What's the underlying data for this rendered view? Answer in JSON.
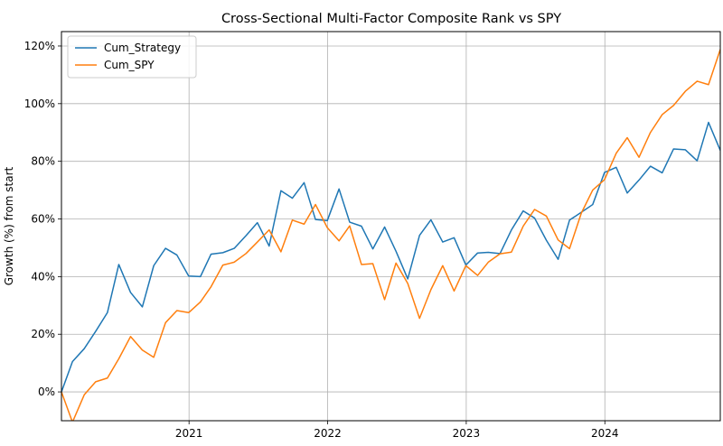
{
  "chart_data": {
    "type": "line",
    "title": "Cross-Sectional Multi-Factor Composite Rank vs SPY",
    "xlabel": "",
    "ylabel": "Growth (%) from start",
    "x_range": [
      "2020-01-31",
      "2024-10-31"
    ],
    "ylim": [
      -10,
      125
    ],
    "grid": true,
    "legend_position": "top-left",
    "x_ticks": [
      {
        "date": "2021-01-01",
        "label": "2021"
      },
      {
        "date": "2022-01-01",
        "label": "2022"
      },
      {
        "date": "2023-01-01",
        "label": "2023"
      },
      {
        "date": "2024-01-01",
        "label": "2024"
      }
    ],
    "y_ticks": [
      {
        "value": 0,
        "label": "0%"
      },
      {
        "value": 20,
        "label": "20%"
      },
      {
        "value": 40,
        "label": "40%"
      },
      {
        "value": 60,
        "label": "60%"
      },
      {
        "value": 80,
        "label": "80%"
      },
      {
        "value": 100,
        "label": "100%"
      },
      {
        "value": 120,
        "label": "120%"
      }
    ],
    "x": [
      "2020-01-31",
      "2020-02-29",
      "2020-03-31",
      "2020-04-30",
      "2020-05-31",
      "2020-06-30",
      "2020-07-31",
      "2020-08-31",
      "2020-09-30",
      "2020-10-31",
      "2020-11-30",
      "2020-12-31",
      "2021-01-31",
      "2021-02-28",
      "2021-03-31",
      "2021-04-30",
      "2021-05-31",
      "2021-06-30",
      "2021-07-31",
      "2021-08-31",
      "2021-09-30",
      "2021-10-31",
      "2021-11-30",
      "2021-12-31",
      "2022-01-31",
      "2022-02-28",
      "2022-03-31",
      "2022-04-30",
      "2022-05-31",
      "2022-06-30",
      "2022-07-31",
      "2022-08-31",
      "2022-09-30",
      "2022-10-31",
      "2022-11-30",
      "2022-12-31",
      "2023-01-31",
      "2023-02-28",
      "2023-03-31",
      "2023-04-30",
      "2023-05-31",
      "2023-06-30",
      "2023-07-31",
      "2023-08-31",
      "2023-09-30",
      "2023-10-31",
      "2023-11-30",
      "2023-12-31",
      "2024-01-31",
      "2024-02-29",
      "2024-03-31",
      "2024-04-30",
      "2024-05-31",
      "2024-06-30",
      "2024-07-31",
      "2024-08-31",
      "2024-09-30",
      "2024-10-31"
    ],
    "series": [
      {
        "name": "Cum_Strategy",
        "color": "#1f77b4",
        "values": [
          0,
          10.5,
          15,
          21,
          27.5,
          44.2,
          34.5,
          29.5,
          43.8,
          49.8,
          47.5,
          40.2,
          40,
          47.8,
          48.3,
          49.8,
          54.2,
          58.7,
          50.6,
          69.8,
          67.2,
          72.6,
          59.8,
          59.4,
          70.4,
          58.9,
          57.5,
          49.6,
          57.2,
          48.8,
          39.2,
          54.3,
          59.7,
          52,
          53.5,
          44,
          48.2,
          48.4,
          48,
          56.2,
          62.8,
          60.3,
          52.6,
          46,
          59.6,
          62.3,
          65,
          76.1,
          77.9,
          69,
          73.5,
          78.3,
          76,
          84.3,
          84,
          80.2,
          93.5,
          83.8
        ]
      },
      {
        "name": "Cum_SPY",
        "color": "#ff7f0e",
        "values": [
          0,
          -10.5,
          -1,
          3.5,
          4.8,
          11.5,
          19.2,
          14.5,
          12,
          24,
          28.2,
          27.5,
          31.2,
          36.5,
          44,
          45,
          48,
          52,
          56.2,
          48.6,
          59.6,
          58.2,
          65,
          57,
          52.4,
          57.6,
          44.2,
          44.5,
          32,
          44.7,
          37.6,
          25.5,
          35.5,
          43.8,
          35,
          43.8,
          40.4,
          45,
          47.9,
          48.5,
          57.5,
          63.3,
          61,
          52.7,
          49.7,
          62,
          70,
          73.6,
          82.8,
          88.2,
          81.4,
          90,
          96.2,
          99.4,
          104.3,
          107.8,
          106.6,
          118.8
        ]
      }
    ]
  }
}
